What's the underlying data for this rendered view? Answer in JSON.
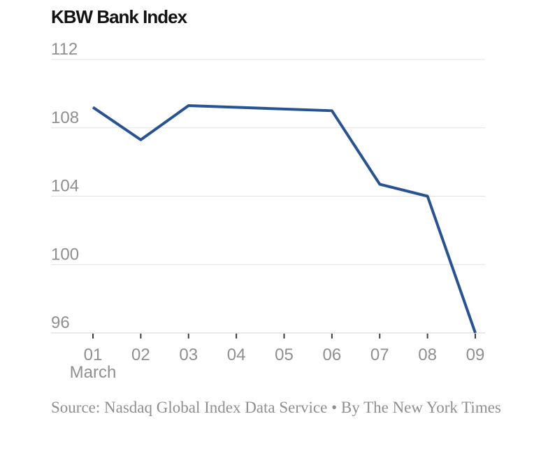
{
  "title": "KBW Bank Index",
  "source": "Source: Nasdaq Global Index Data Service • By The New York Times",
  "colors": {
    "line": "#275394",
    "grid": "#e2e2e2",
    "axis_line": "#d5d5d5",
    "tick": "#3d3d3d",
    "label": "#8f8f8f",
    "title_text": "#121212",
    "source_text": "#8f8f8f",
    "background": "#ffffff"
  },
  "chart_data": {
    "type": "line",
    "title": "KBW Bank Index",
    "xlabel": "March",
    "ylabel": "",
    "x_axis_month": "March",
    "x_tick_labels": [
      "01",
      "02",
      "03",
      "04",
      "05",
      "06",
      "07",
      "08",
      "09"
    ],
    "x": [
      1,
      2,
      3,
      6,
      7,
      8,
      9
    ],
    "series": [
      {
        "name": "KBW Bank Index",
        "values": [
          109.2,
          107.3,
          109.3,
          109.0,
          104.7,
          104.0,
          96.0
        ]
      }
    ],
    "y_ticks": [
      96,
      100,
      104,
      108,
      112
    ],
    "ylim": [
      96,
      112
    ],
    "xlim": [
      1,
      9
    ],
    "grid": "horizontal",
    "legend": "none"
  }
}
